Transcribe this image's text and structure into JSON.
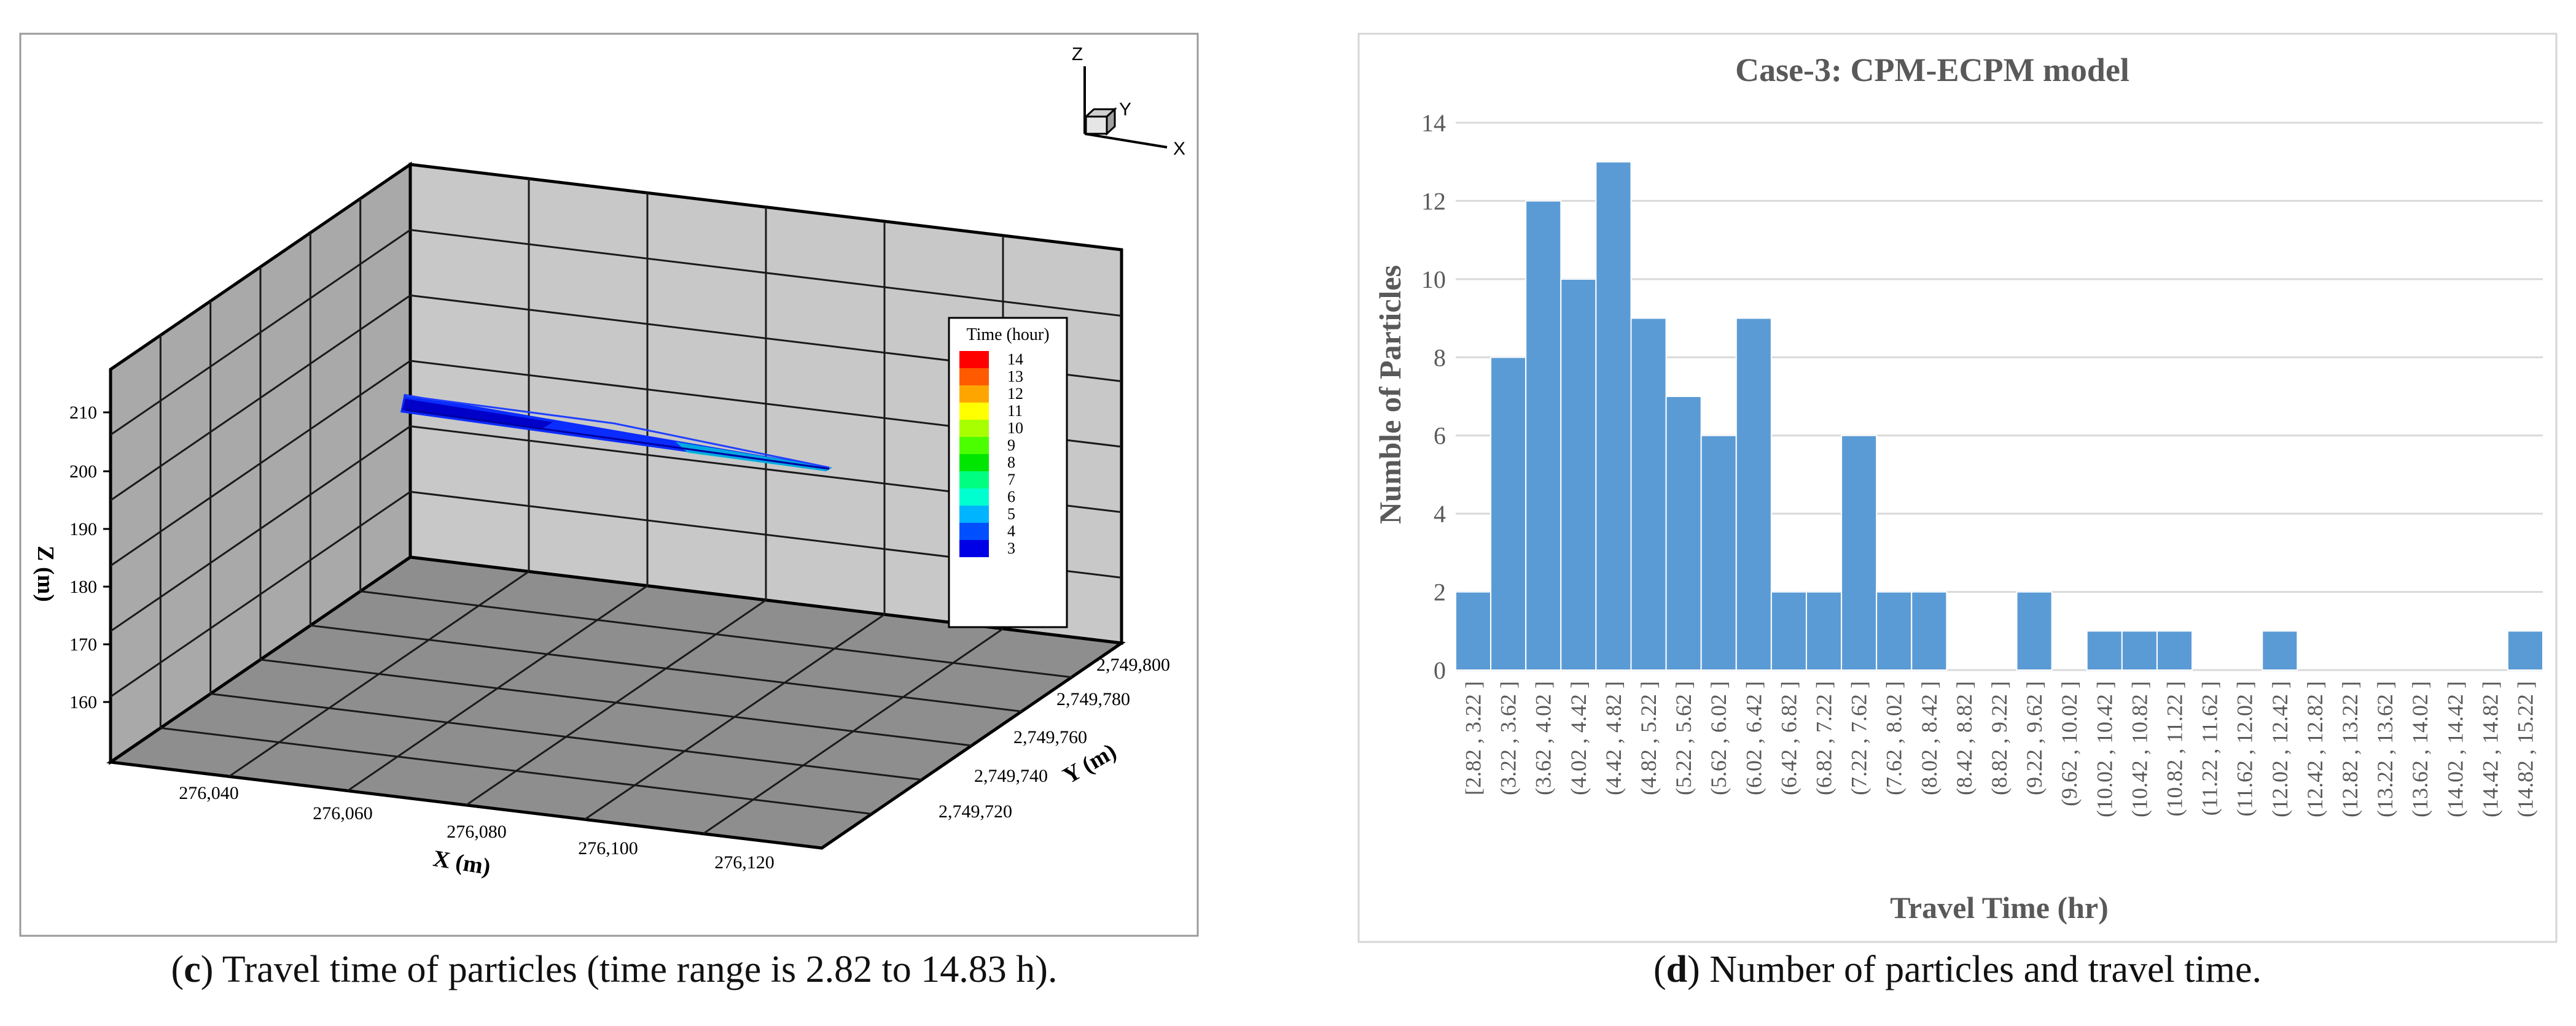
{
  "panel_c": {
    "caption_letter": "c",
    "caption_text": "Travel time of particles (time range is 2.82 to 14.83 h).",
    "axis_indicator": {
      "z": "Z",
      "y": "Y",
      "x": "X"
    },
    "z_axis_label": "Z (m)",
    "z_ticks": [
      "210",
      "200",
      "190",
      "180",
      "170",
      "160"
    ],
    "x_axis_label": "X (m)",
    "x_ticks": [
      "276,040",
      "276,060",
      "276,080",
      "276,100",
      "276,120"
    ],
    "y_axis_label": "Y (m)",
    "y_ticks": [
      "2,749,800",
      "2,749,780",
      "2,749,760",
      "2,749,740",
      "2,749,720"
    ],
    "legend_title": "Time (hour)",
    "legend_levels": [
      {
        "label": "14",
        "color": "#ff0000"
      },
      {
        "label": "13",
        "color": "#ff5a00"
      },
      {
        "label": "12",
        "color": "#ffa500"
      },
      {
        "label": "11",
        "color": "#ffff00"
      },
      {
        "label": "10",
        "color": "#a8ff00"
      },
      {
        "label": "9",
        "color": "#4cff00"
      },
      {
        "label": "8",
        "color": "#00e600"
      },
      {
        "label": "7",
        "color": "#00ff80"
      },
      {
        "label": "6",
        "color": "#00ffd0"
      },
      {
        "label": "5",
        "color": "#00b4ff"
      },
      {
        "label": "4",
        "color": "#0050ff"
      },
      {
        "label": "3",
        "color": "#0000e6"
      }
    ]
  },
  "panel_d": {
    "caption_letter": "d",
    "caption_text": "Number of particles and travel time."
  },
  "chart_data": {
    "type": "bar",
    "title": "Case-3: CPM-ECPM model",
    "xlabel": "Travel Time (hr)",
    "ylabel": "Numble of Particles",
    "ylim": [
      0,
      14
    ],
    "yticks": [
      0,
      2,
      4,
      6,
      8,
      10,
      12,
      14
    ],
    "grid": true,
    "bar_color": "#5b9bd5",
    "categories": [
      "[2.82 , 3.22 ]",
      "(3.22 , 3.62 ]",
      "(3.62 , 4.02 ]",
      "(4.02 , 4.42 ]",
      "(4.42 , 4.82 ]",
      "(4.82 , 5.22 ]",
      "(5.22 , 5.62 ]",
      "(5.62 , 6.02 ]",
      "(6.02 , 6.42 ]",
      "(6.42 , 6.82 ]",
      "(6.82 , 7.22 ]",
      "(7.22 , 7.62 ]",
      "(7.62 , 8.02 ]",
      "(8.02 , 8.42 ]",
      "(8.42 , 8.82 ]",
      "(8.82 , 9.22 ]",
      "(9.22 , 9.62 ]",
      "(9.62 , 10.02 ]",
      "(10.02 , 10.42 ]",
      "(10.42 , 10.82 ]",
      "(10.82 , 11.22 ]",
      "(11.22 , 11.62 ]",
      "(11.62 , 12.02 ]",
      "(12.02 , 12.42 ]",
      "(12.42 , 12.82 ]",
      "(12.82 , 13.22 ]",
      "(13.22 , 13.62 ]",
      "(13.62 , 14.02 ]",
      "(14.02 , 14.42 ]",
      "(14.42 , 14.82 ]",
      "(14.82 , 15.22 ]"
    ],
    "values": [
      2,
      8,
      12,
      10,
      13,
      9,
      7,
      6,
      9,
      2,
      2,
      6,
      2,
      2,
      0,
      0,
      2,
      0,
      1,
      1,
      1,
      0,
      0,
      1,
      0,
      0,
      0,
      0,
      0,
      0,
      1
    ]
  }
}
